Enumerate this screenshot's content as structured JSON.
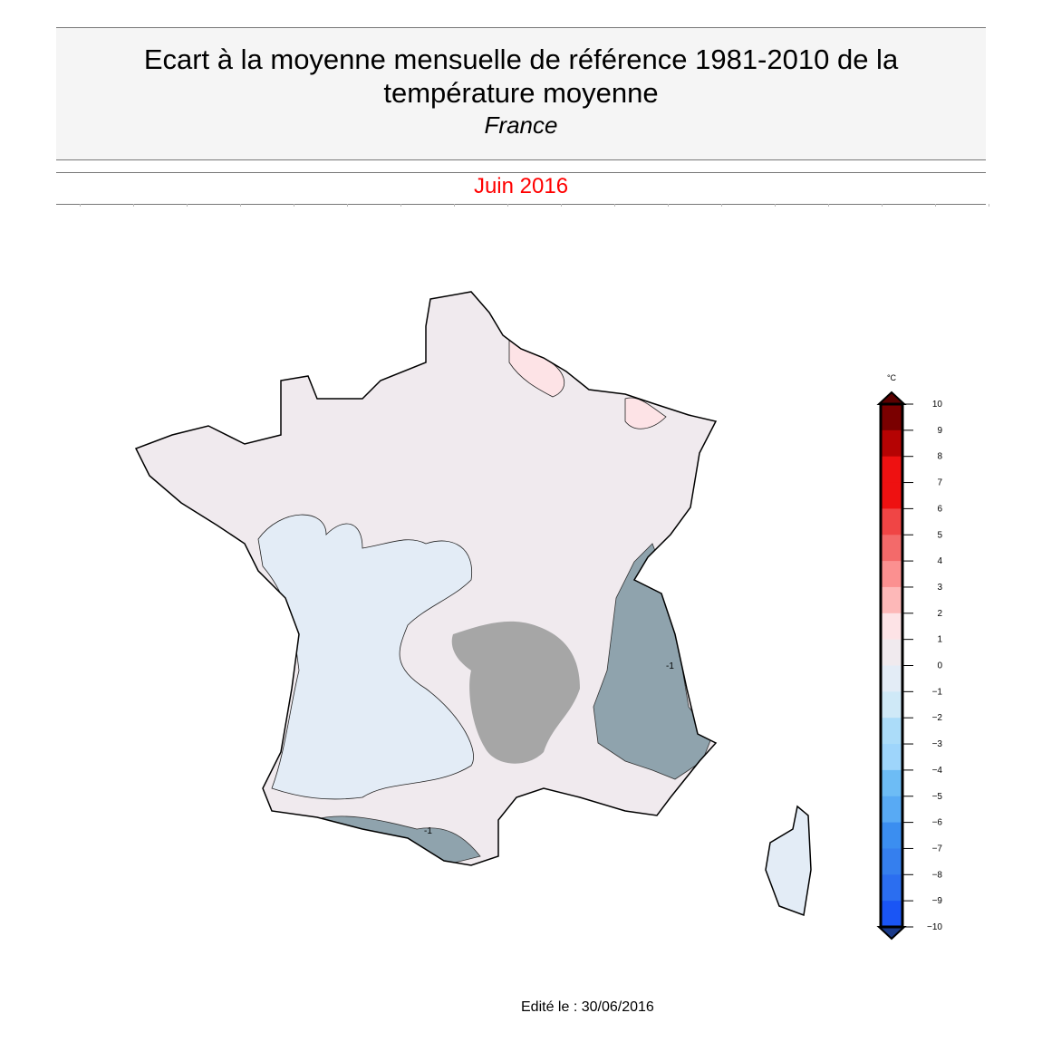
{
  "header": {
    "title": "Ecart à la moyenne mensuelle de référence 1981-2010 de la température moyenne",
    "region": "France",
    "period": "Juin 2016"
  },
  "colorbar": {
    "unit": "°C",
    "ticks": [
      "10",
      "9",
      "8",
      "7",
      "6",
      "5",
      "4",
      "3",
      "2",
      "1",
      "0",
      "−1",
      "−2",
      "−3",
      "−4",
      "−5",
      "−6",
      "−7",
      "−8",
      "−9",
      "−10"
    ],
    "range": [
      -10,
      10
    ],
    "bins_top_to_bottom": [
      "#7a0000",
      "#b50303",
      "#ee1111",
      "#ee1111",
      "#f04545",
      "#f36a6a",
      "#fb9090",
      "#fdb8b8",
      "#fde3e6",
      "#f0eaee",
      "#e3ecf6",
      "#cfe9f7",
      "#abdcf9",
      "#9ed5fb",
      "#6dbcf5",
      "#58aaf4",
      "#3b8ef0",
      "#357fee",
      "#2b6ef0",
      "#1a55f5"
    ],
    "over_color": "#5a0000",
    "under_color": "#1a3a8a"
  },
  "map": {
    "land_color": "#f0eaee",
    "cold_color": "#e3ecf6",
    "relief_color": "#a6a6a6",
    "contour_labels": [
      "-1",
      "-1"
    ]
  },
  "footer": {
    "edited": "Edité le : 30/06/2016"
  }
}
